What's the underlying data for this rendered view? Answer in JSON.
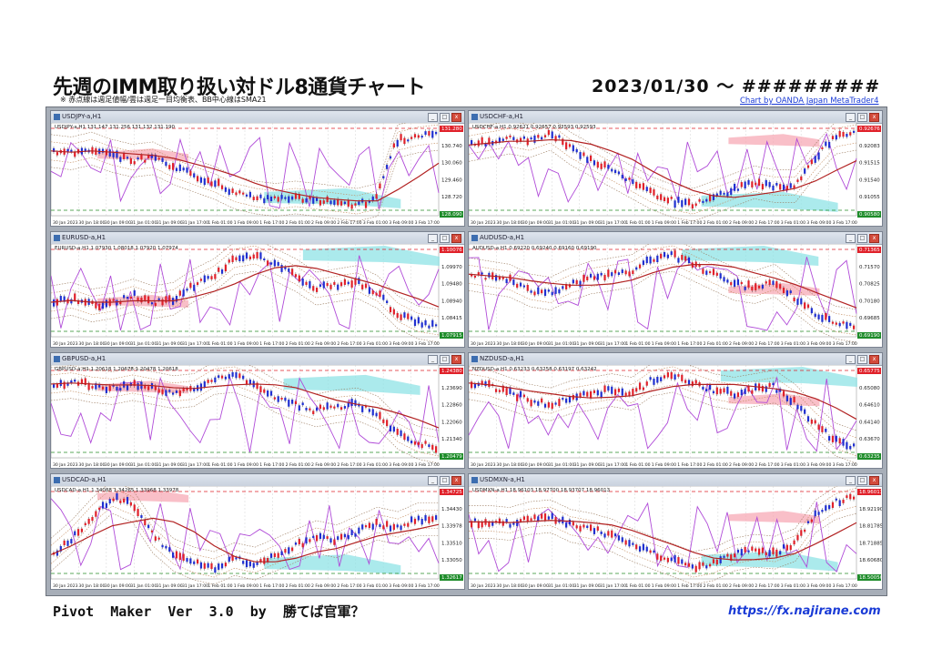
{
  "header": {
    "title": "先週のIMM取り扱い対ドル8通貨チャート",
    "note": "※ 赤点線は週足値幅/雲は週足一目均衡表、BB中心線はSMA21",
    "date_range": "2023/01/30 ～ #########",
    "credit": "Chart by OANDA Japan MetaTrader4"
  },
  "footer": {
    "left": "Pivot  Maker  Ver  3.0  by  勝てば官軍？",
    "right": "https://fx.najirane.com"
  },
  "x_labels": [
    "30 Jan 2023",
    "30 Jan 18:00",
    "30 Jan 09:00",
    "31 Jan 01:00",
    "31 Jan 09:00",
    "31 Jan 17:00",
    "1 Feb 01:00",
    "1 Feb 09:00",
    "1 Feb 17:00",
    "2 Feb 01:00",
    "2 Feb 09:00",
    "2 Feb 17:00",
    "3 Feb 01:00",
    "3 Feb 09:00",
    "3 Feb 17:00"
  ],
  "charts": [
    {
      "id": "usdjpy",
      "title": "USDJPY-a,H1",
      "info": "USDJPY-a,H1 131.147 131.256 131.132 131.190",
      "prices": [
        "131.280",
        "130.740",
        "130.060",
        "129.460",
        "128.720",
        "128.090"
      ],
      "trend": [
        130.6,
        130.5,
        130.7,
        130.4,
        130.2,
        130.3,
        129.9,
        129.6,
        129.3,
        128.9,
        128.7,
        128.6,
        128.7,
        128.6,
        128.5,
        128.4,
        128.6,
        131.0,
        131.2,
        131.3
      ],
      "color": "#e0212a"
    },
    {
      "id": "usdchf",
      "title": "USDCHF-a,H1",
      "info": "USDCHF-a,H1 0.92621 0.92657 0.92593 0.92593",
      "prices": [
        "0.92676",
        "0.92083",
        "0.91515",
        "0.91540",
        "0.91055",
        "0.90580"
      ],
      "trend": [
        0.923,
        0.924,
        0.925,
        0.924,
        0.926,
        0.922,
        0.919,
        0.916,
        0.913,
        0.91,
        0.908,
        0.907,
        0.909,
        0.911,
        0.913,
        0.912,
        0.912,
        0.919,
        0.925,
        0.926
      ],
      "color": "#e0212a"
    },
    {
      "id": "eurusd",
      "title": "EURUSD-a,H1",
      "info": "EURUSD-a,H1 1.07930 1.08018 1.07920 1.07974",
      "prices": [
        "1.10076",
        "1.09970",
        "1.09480",
        "1.08940",
        "1.08415",
        "1.07915"
      ],
      "trend": [
        1.086,
        1.087,
        1.085,
        1.086,
        1.088,
        1.086,
        1.087,
        1.091,
        1.094,
        1.099,
        1.1,
        1.097,
        1.094,
        1.09,
        1.091,
        1.092,
        1.089,
        1.083,
        1.08,
        1.079
      ],
      "color": "#e0212a"
    },
    {
      "id": "audusd",
      "title": "AUDUSD-a,H1",
      "info": "AUDUSD-a,H1 0.69220 0.69240 0.69160 0.69190",
      "prices": [
        "0.71365",
        "0.71570",
        "0.70825",
        "0.70180",
        "0.69685",
        "0.69190"
      ],
      "trend": [
        0.708,
        0.707,
        0.706,
        0.703,
        0.702,
        0.705,
        0.707,
        0.708,
        0.709,
        0.713,
        0.714,
        0.711,
        0.708,
        0.705,
        0.704,
        0.706,
        0.701,
        0.696,
        0.693,
        0.692
      ],
      "color": "#e0212a"
    },
    {
      "id": "gbpusd",
      "title": "GBPUSD-a,H1",
      "info": "GBPUSD-a,H1 1.20618 1.20678 1.20478 1.20618",
      "prices": [
        "1.24380",
        "1.23690",
        "1.22860",
        "1.22060",
        "1.21340",
        "1.20479"
      ],
      "trend": [
        1.236,
        1.237,
        1.235,
        1.234,
        1.236,
        1.234,
        1.232,
        1.233,
        1.239,
        1.24,
        1.236,
        1.23,
        1.226,
        1.223,
        1.225,
        1.226,
        1.222,
        1.212,
        1.207,
        1.205
      ],
      "color": "#e0212a"
    },
    {
      "id": "nzdusd",
      "title": "NZDUSD-a,H1",
      "info": "NZDUSD-a,H1 0.63233 0.63258 0.63197 0.63242",
      "prices": [
        "0.65775",
        "0.65080",
        "0.64610",
        "0.64140",
        "0.63670",
        "0.63235"
      ],
      "trend": [
        0.65,
        0.649,
        0.647,
        0.645,
        0.644,
        0.646,
        0.647,
        0.648,
        0.647,
        0.651,
        0.652,
        0.65,
        0.648,
        0.647,
        0.648,
        0.649,
        0.645,
        0.639,
        0.634,
        0.632
      ],
      "color": "#e0212a"
    },
    {
      "id": "usdcad",
      "title": "USDCAD-a,H1",
      "info": "USDCAD-a,H1 1.34088 1.34265 1.33968 1.33978",
      "prices": [
        "1.34725",
        "1.34430",
        "1.33978",
        "1.33510",
        "1.33050",
        "1.32617"
      ],
      "trend": [
        1.332,
        1.336,
        1.341,
        1.345,
        1.343,
        1.336,
        1.332,
        1.33,
        1.329,
        1.331,
        1.33,
        1.332,
        1.334,
        1.336,
        1.335,
        1.337,
        1.339,
        1.338,
        1.34,
        1.34
      ],
      "color": "#e0212a"
    },
    {
      "id": "usdmxn",
      "title": "USDMXN-a,H1",
      "info": "USDMXN-a,H1 18.96103 18.97700 18.93707 18.96013",
      "prices": [
        "18.96013",
        "18.92190",
        "18.81785",
        "18.71885",
        "18.60680",
        "18.50050"
      ],
      "trend": [
        18.82,
        18.82,
        18.81,
        18.84,
        18.85,
        18.8,
        18.78,
        18.75,
        18.7,
        18.66,
        18.62,
        18.58,
        18.6,
        18.65,
        18.67,
        18.66,
        18.7,
        18.85,
        18.92,
        18.95
      ],
      "color": "#e0212a"
    }
  ]
}
